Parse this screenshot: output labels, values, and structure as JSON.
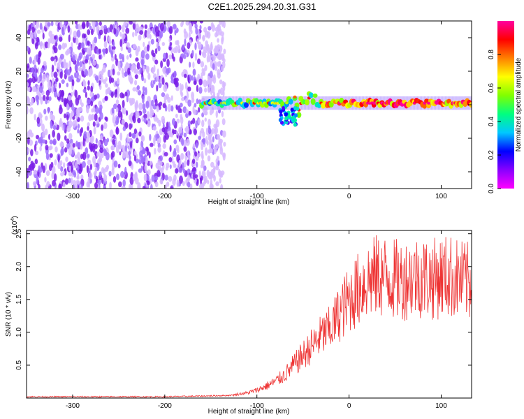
{
  "title": "C2E1.2025.294.20.31.G31",
  "chart_data": [
    {
      "type": "heatmap",
      "name": "spectrogram",
      "xlabel": "Height of straight line (km)",
      "ylabel": "Frequency (Hz)",
      "xlim": [
        -350,
        133
      ],
      "ylim": [
        -50,
        50
      ],
      "xticks": [
        -300,
        -200,
        -100,
        0,
        100
      ],
      "yticks": [
        -40,
        -20,
        0,
        20,
        40
      ],
      "colorbar": {
        "label": "Normalized spectral amplitude",
        "range": [
          0,
          1
        ],
        "ticks": [
          "0.0",
          "0.2",
          "0.4",
          "0.6",
          "0.8"
        ],
        "colors": [
          "#ff00ff",
          "#8800ff",
          "#0000ff",
          "#00c8ff",
          "#00ff80",
          "#80ff00",
          "#ffff00",
          "#ff8000",
          "#ff0000",
          "#ff00a0"
        ]
      },
      "regions": [
        {
          "description": "noise",
          "x_range": [
            -350,
            -160
          ],
          "freq_range": [
            -50,
            50
          ],
          "amplitude": 0.2
        },
        {
          "description": "signal",
          "x_range": [
            -160,
            133
          ],
          "freq_center": 1,
          "freq_halfwidth": 3,
          "amplitude": 0.9
        }
      ]
    },
    {
      "type": "line",
      "name": "snr",
      "xlabel": "Height of straight line (km)",
      "ylabel": "SNR (10 * v/v)",
      "y_multiplier_label": "(x10",
      "y_multiplier_exp": "4",
      "y_multiplier_close": ")",
      "xlim": [
        -350,
        133
      ],
      "ylim": [
        0,
        2.55
      ],
      "xticks": [
        -300,
        -200,
        -100,
        0,
        100
      ],
      "yticks": [
        "0.5",
        "1.0",
        "1.5",
        "2.0",
        "2.5"
      ],
      "color": "#ee3333",
      "x": [
        -350,
        -300,
        -250,
        -200,
        -160,
        -130,
        -110,
        -100,
        -90,
        -80,
        -70,
        -60,
        -50,
        -40,
        -30,
        -20,
        -10,
        0,
        10,
        20,
        30,
        40,
        50,
        60,
        70,
        80,
        90,
        100,
        110,
        120,
        133
      ],
      "y": [
        0.02,
        0.02,
        0.02,
        0.02,
        0.03,
        0.04,
        0.08,
        0.12,
        0.18,
        0.25,
        0.35,
        0.5,
        0.65,
        0.8,
        0.95,
        1.05,
        1.3,
        1.5,
        1.65,
        1.8,
        1.85,
        1.85,
        1.8,
        1.8,
        1.85,
        1.85,
        1.8,
        1.85,
        1.85,
        1.8,
        1.75
      ]
    }
  ]
}
